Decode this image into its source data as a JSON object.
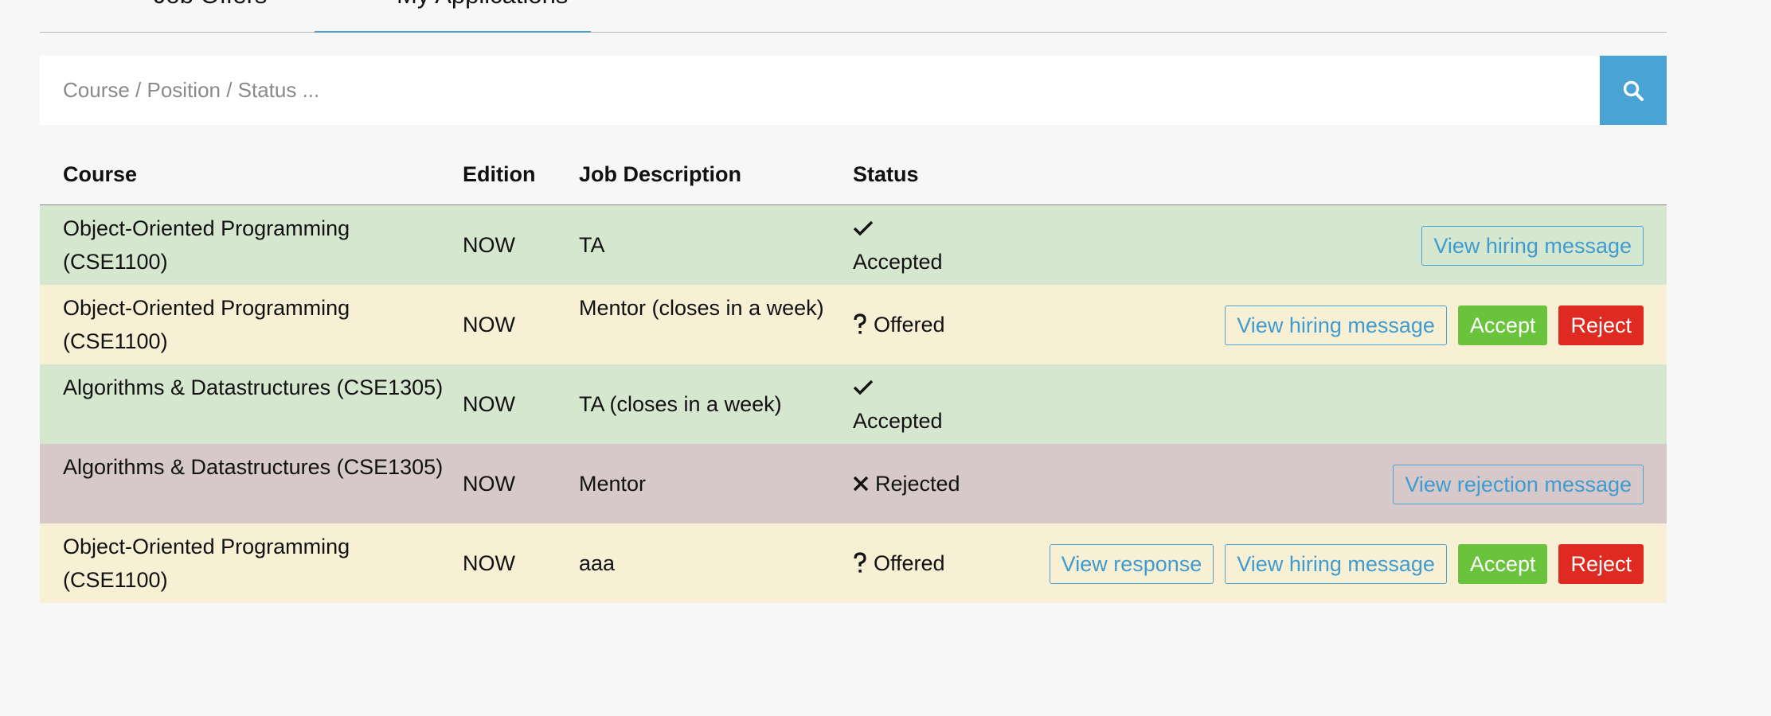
{
  "tabs": [
    {
      "label": "Job Offers",
      "active": false
    },
    {
      "label": "My Applications",
      "active": true
    }
  ],
  "search": {
    "placeholder": "Course / Position / Status ...",
    "value": "",
    "button_icon": "search-icon"
  },
  "table": {
    "headers": {
      "course": "Course",
      "edition": "Edition",
      "description": "Job Description",
      "status": "Status"
    },
    "rows": [
      {
        "course": "Object-Oriented Programming (CSE1100)",
        "edition": "NOW",
        "description": "TA",
        "status": "Accepted",
        "status_icon": "check-icon",
        "row_color": "#d6e7d0",
        "actions": [
          "View hiring message"
        ]
      },
      {
        "course": "Object-Oriented Programming (CSE1100)",
        "edition": "NOW",
        "description": "Mentor (closes in a week)",
        "status": "Offered",
        "status_icon": "question-icon",
        "row_color": "#f7f0d4",
        "actions": [
          "View hiring message",
          "Accept",
          "Reject"
        ]
      },
      {
        "course": "Algorithms & Datastructures (CSE1305)",
        "edition": "NOW",
        "description": "TA (closes in a week)",
        "status": "Accepted",
        "status_icon": "check-icon",
        "row_color": "#d6e7d0",
        "actions": []
      },
      {
        "course": "Algorithms & Datastructures (CSE1305)",
        "edition": "NOW",
        "description": "Mentor",
        "status": "Rejected",
        "status_icon": "x-icon",
        "row_color": "#d7c9ca",
        "actions": [
          "View rejection message"
        ]
      },
      {
        "course": "Object-Oriented Programming (CSE1100)",
        "edition": "NOW",
        "description": "aaa",
        "status": "Offered",
        "status_icon": "question-icon",
        "row_color": "#f7f0d4",
        "actions": [
          "View response",
          "View hiring message",
          "Accept",
          "Reject"
        ]
      }
    ]
  },
  "colors": {
    "accent": "#4aa3d5",
    "accept": "#69c43c",
    "reject": "#df2a21",
    "accepted_row": "#d6e7d0",
    "offered_row": "#f7f0d4",
    "rejected_row": "#d7c9ca",
    "page_background": "#f7f7f7"
  }
}
